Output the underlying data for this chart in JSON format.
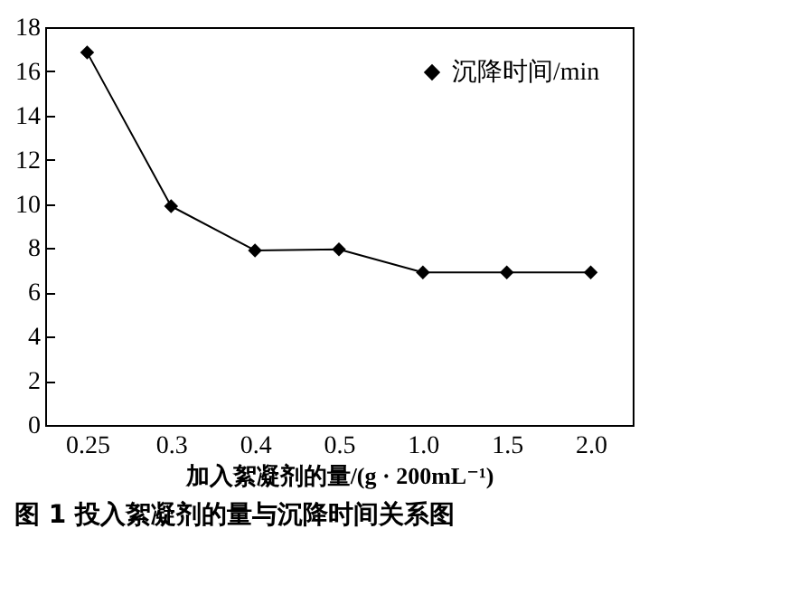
{
  "chart_data": {
    "type": "line",
    "title": "图 1   投入絮凝剂的量与沉降时间关系图",
    "xlabel": "加入絮凝剂的量/(g · 200mL⁻¹)",
    "categories": [
      "0.25",
      "0.3",
      "0.4",
      "0.5",
      "1.0",
      "1.5",
      "2.0"
    ],
    "series": [
      {
        "name": "沉降时间/min",
        "color": "#000000",
        "values": [
          16.85,
          9.9,
          7.9,
          7.95,
          6.9,
          6.9,
          6.9
        ]
      }
    ],
    "ylim": [
      0,
      18
    ],
    "yticks": [
      0,
      2,
      4,
      6,
      8,
      10,
      12,
      14,
      16,
      18
    ],
    "grid": false,
    "legend": "top right",
    "marker": "diamond",
    "line_style": "solid"
  }
}
